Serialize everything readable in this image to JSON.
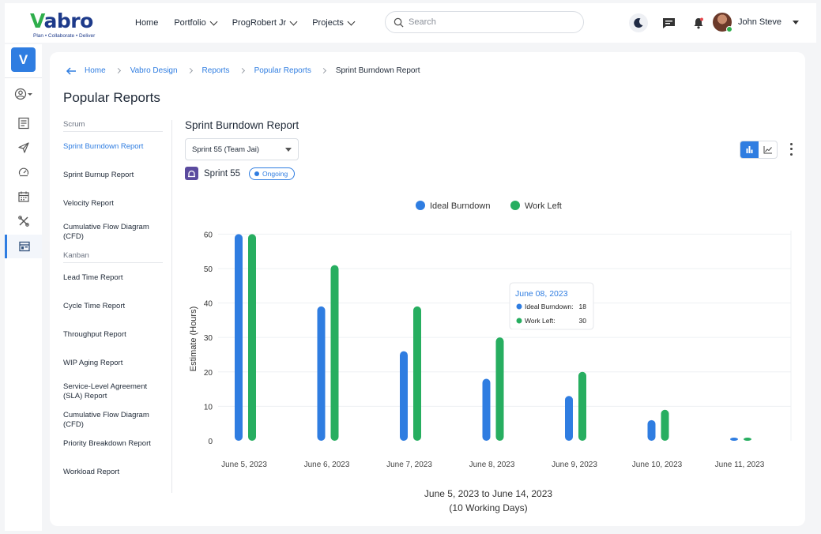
{
  "brand": {
    "logo_v": "V",
    "logo_rest": "abro",
    "tagline": "Plan • Collaborate • Deliver",
    "rail_letter": "V"
  },
  "nav": {
    "items": [
      {
        "label": "Home",
        "dropdown": false
      },
      {
        "label": "Portfolio",
        "dropdown": true
      },
      {
        "label": "ProgRobert Jr",
        "dropdown": true
      },
      {
        "label": "Projects",
        "dropdown": true
      }
    ]
  },
  "search": {
    "placeholder": "Search"
  },
  "user": {
    "name": "John Steve"
  },
  "breadcrumb": [
    "Home",
    "Vabro Design",
    "Reports",
    "Popular Reports",
    "Sprint Burndown Report"
  ],
  "page_title": "Popular Reports",
  "sidebar": {
    "scrum_heading": "Scrum",
    "scrum_items": [
      "Sprint Burndown Report",
      "Sprint Burnup Report",
      "Velocity Report",
      "Cumulative Flow Diagram (CFD)"
    ],
    "kanban_heading": "Kanban",
    "kanban_items": [
      "Lead Time Report",
      "Cycle Time Report",
      "Throughput Report",
      "WIP Aging Report",
      "Service-Level Agreement (SLA) Report",
      "Cumulative Flow Diagram (CFD)",
      "Priority Breakdown Report",
      "Workload Report"
    ]
  },
  "report": {
    "title": "Sprint Burndown Report",
    "sprint_select": "Sprint 55 (Team Jai)",
    "sprint_name": "Sprint 55",
    "status": "Ongoing"
  },
  "colors": {
    "accent": "#2f7de1",
    "ideal": "#2f7de1",
    "work_left": "#27ae60"
  },
  "chart_data": {
    "type": "bar",
    "categories": [
      "June 5, 2023",
      "June 6, 2023",
      "June 7, 2023",
      "June 8, 2023",
      "June 9, 2023",
      "June 10, 2023",
      "June 11, 2023"
    ],
    "series": [
      {
        "name": "Ideal Burndown",
        "values": [
          60,
          39,
          26,
          18,
          13,
          6,
          0.5
        ]
      },
      {
        "name": "Work Left",
        "values": [
          60,
          51,
          39,
          30,
          20,
          9,
          0.5
        ]
      }
    ],
    "ylabel": "Estimate (Hours)",
    "yticks": [
      0,
      10,
      20,
      30,
      40,
      50,
      60
    ],
    "ylim": [
      0,
      61
    ],
    "xlabel_line1": "June 5, 2023 to June 14, 2023",
    "xlabel_line2": "(10 Working Days)",
    "legend_position": "top-center",
    "grid": true,
    "tooltip": {
      "date": "June 08, 2023",
      "ideal_label": "Ideal Burndown:",
      "ideal_value": "18",
      "work_label": "Work Left:",
      "work_value": "30",
      "category_index": 3
    }
  }
}
